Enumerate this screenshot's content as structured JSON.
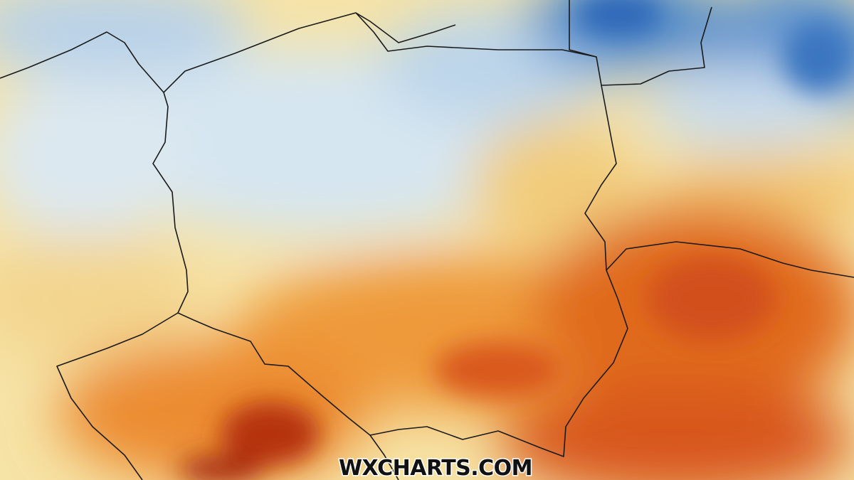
{
  "watermark": "WXCHARTS.COM"
}
